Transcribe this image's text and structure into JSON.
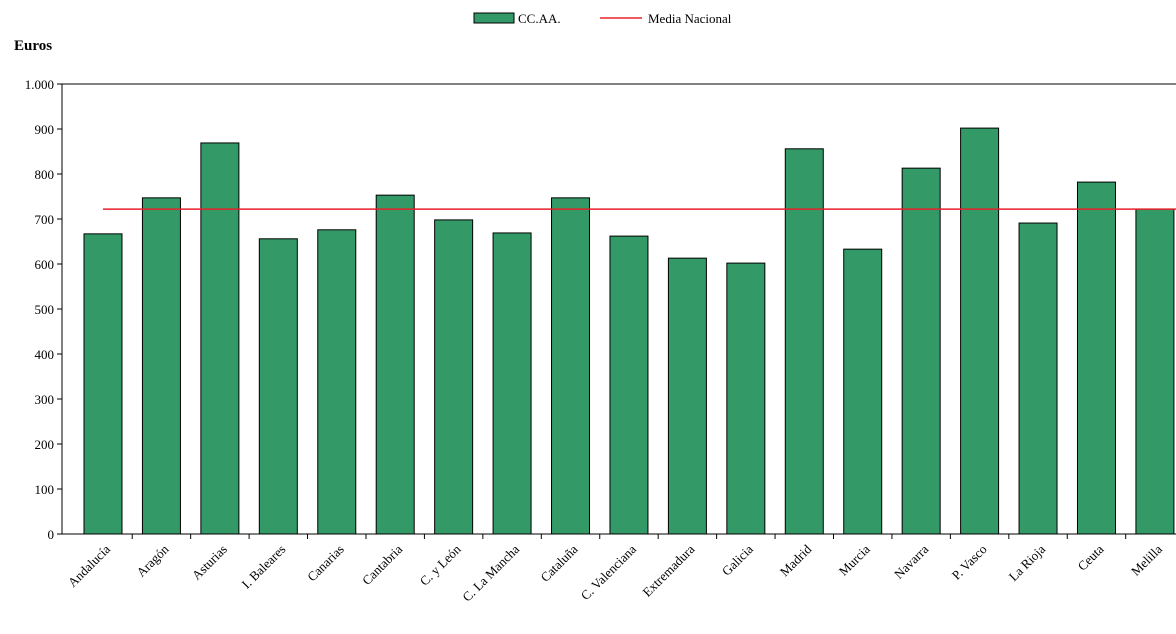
{
  "chart_data": {
    "type": "bar",
    "y_axis_label": "Euros",
    "categories": [
      "Andalucía",
      "Aragón",
      "Asturias",
      "I. Baleares",
      "Canarias",
      "Cantabria",
      "C. y León",
      "C. La Mancha",
      "Cataluña",
      "C. Valenciana",
      "Extremadura",
      "Galicia",
      "Madrid",
      "Murcia",
      "Navarra",
      "P. Vasco",
      "La Rioja",
      "Ceuta",
      "Melilla"
    ],
    "series": [
      {
        "name": "CC.AA.",
        "color": "#339966",
        "values": [
          667,
          747,
          869,
          656,
          676,
          753,
          698,
          669,
          747,
          662,
          613,
          602,
          856,
          633,
          813,
          902,
          691,
          782,
          722
        ]
      },
      {
        "name": "Media Nacional",
        "color": "#e8202a",
        "value": 722
      }
    ],
    "ylim": [
      0,
      1000
    ],
    "yticks": [
      0,
      100,
      200,
      300,
      400,
      500,
      600,
      700,
      800,
      900,
      {
        "value": 1000,
        "label": "1.000"
      }
    ]
  }
}
